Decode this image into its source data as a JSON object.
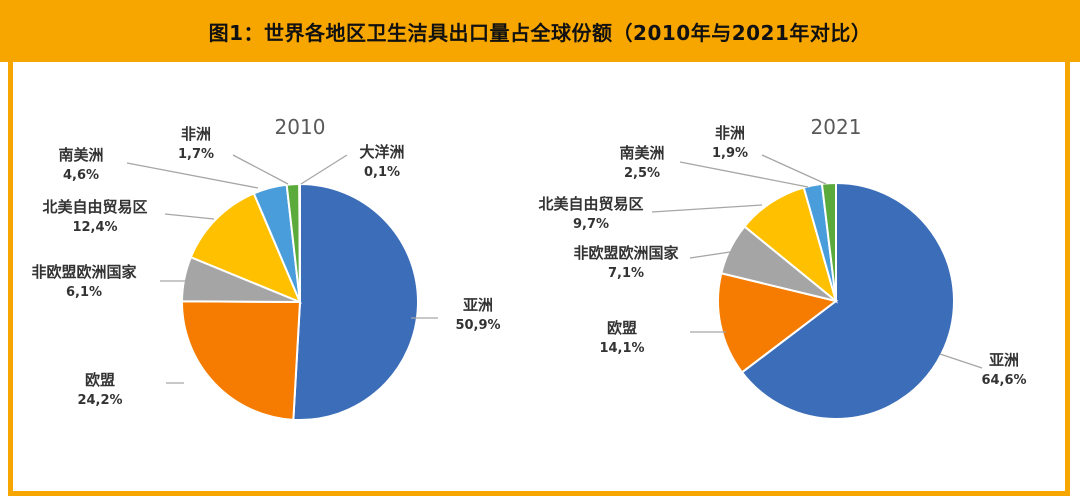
{
  "title": "图1：世界各地区卫生洁具出口量占全球份额（2010年与2021年对比）",
  "colors": {
    "accent": "#F7A600",
    "亚洲": "#3B6DB8",
    "欧盟": "#F57C00",
    "非欧盟欧洲国家": "#A5A5A5",
    "北美自由贸易区": "#FFC000",
    "南美洲": "#4A9DDB",
    "非洲": "#5BAA3C",
    "大洋洲": "#2E5A92",
    "leader": "#A6A6A6"
  },
  "chart_data": [
    {
      "type": "pie",
      "title": "2010",
      "slices": [
        {
          "name": "亚洲",
          "value": 50.9,
          "label": "50,9%"
        },
        {
          "name": "欧盟",
          "value": 24.2,
          "label": "24,2%"
        },
        {
          "name": "非欧盟欧洲国家",
          "value": 6.1,
          "label": "6,1%"
        },
        {
          "name": "北美自由贸易区",
          "value": 12.4,
          "label": "12,4%"
        },
        {
          "name": "南美洲",
          "value": 4.6,
          "label": "4,6%"
        },
        {
          "name": "非洲",
          "value": 1.7,
          "label": "1,7%"
        },
        {
          "name": "大洋洲",
          "value": 0.1,
          "label": "0,1%"
        }
      ]
    },
    {
      "type": "pie",
      "title": "2021",
      "slices": [
        {
          "name": "亚洲",
          "value": 64.6,
          "label": "64,6%"
        },
        {
          "name": "欧盟",
          "value": 14.1,
          "label": "14,1%"
        },
        {
          "name": "非欧盟欧洲国家",
          "value": 7.1,
          "label": "7,1%"
        },
        {
          "name": "北美自由贸易区",
          "value": 9.7,
          "label": "9,7%"
        },
        {
          "name": "南美洲",
          "value": 2.5,
          "label": "2,5%"
        },
        {
          "name": "非洲",
          "value": 1.9,
          "label": "1,9%"
        }
      ]
    }
  ]
}
